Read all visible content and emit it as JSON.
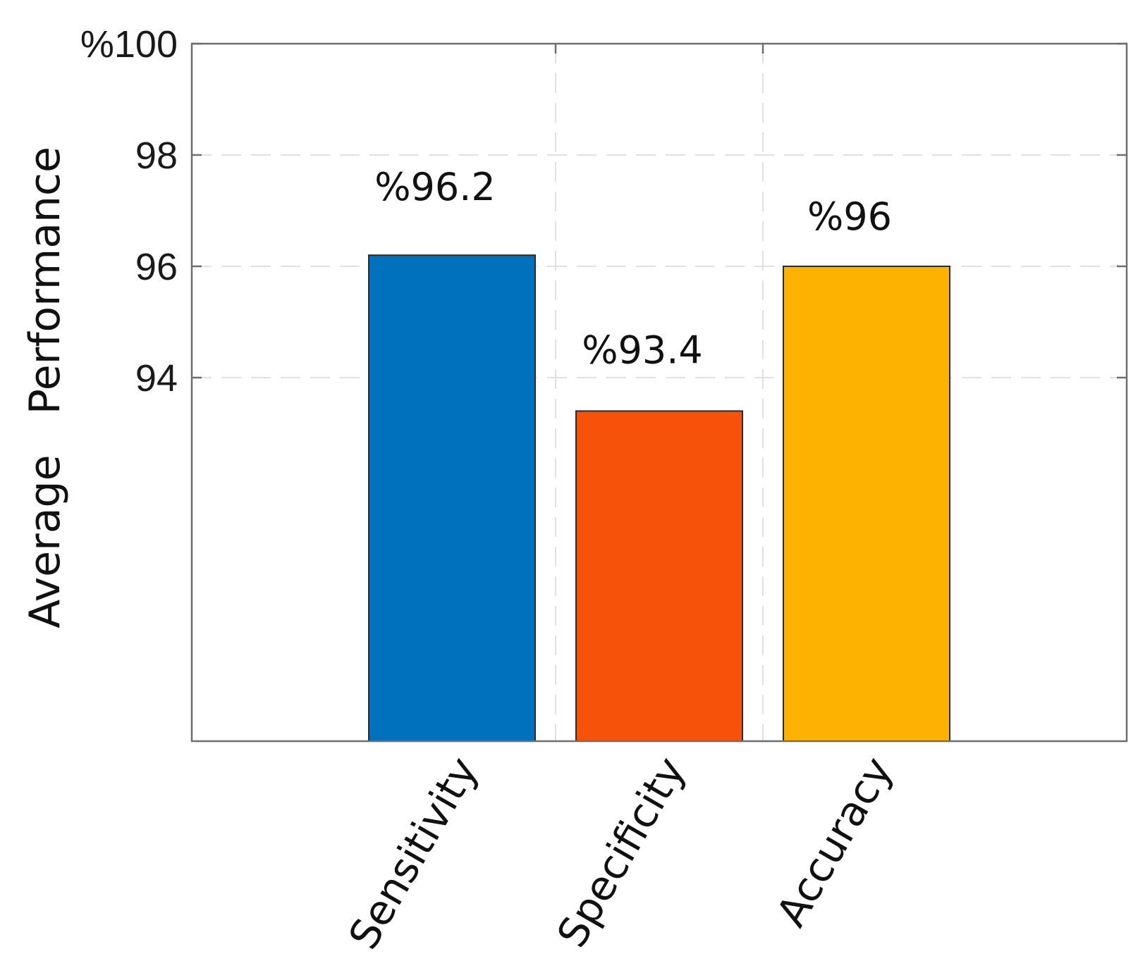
{
  "chart_data": {
    "type": "bar",
    "categories": [
      "Sensitivity",
      "Specificity",
      "Accuracy"
    ],
    "values": [
      96.2,
      93.4,
      96
    ],
    "value_labels": [
      "%96.2",
      "%93.4",
      "%96"
    ],
    "title": "",
    "xlabel": "",
    "ylabel": "Average   Performance",
    "ylim": [
      75,
      100
    ],
    "yticks": [
      94,
      96,
      98,
      100
    ],
    "ytick_labels": [
      "94",
      "96",
      "98",
      "%100"
    ],
    "grid": true,
    "colors": [
      "#0072bd",
      "#f6520a",
      "#fdb100"
    ]
  }
}
